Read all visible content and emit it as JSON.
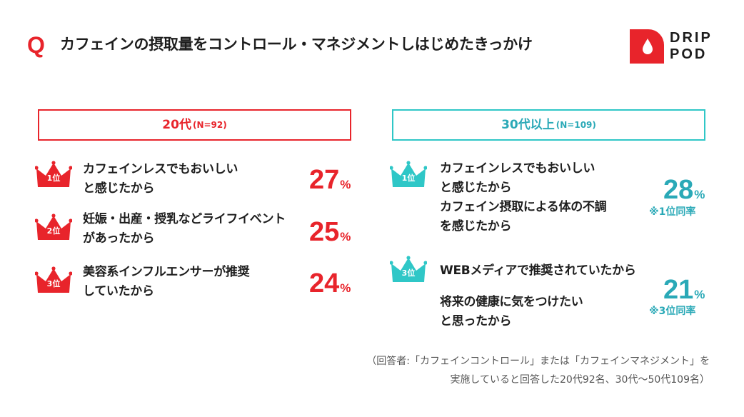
{
  "header": {
    "q_mark": "Q",
    "title": "カフェインの摂取量をコントロール・マネジメントしはじめたきっかけ"
  },
  "logo": {
    "line1": "DRIP",
    "line2": "POD",
    "color": "#e8242b"
  },
  "colors": {
    "red": "#e8242b",
    "teal": "#2fc7c7",
    "teal_text": "#2aa9b7"
  },
  "chart_data": [
    {
      "type": "table",
      "group": "20代",
      "n": "(N=92)",
      "rows": [
        {
          "rank": "1位",
          "reason": [
            "カフェインレスでもおいしい",
            "と感じたから"
          ],
          "value": 27,
          "unit": "%"
        },
        {
          "rank": "2位",
          "reason": [
            "妊娠・出産・授乳などライフイベント",
            "があったから"
          ],
          "value": 25,
          "unit": "%"
        },
        {
          "rank": "3位",
          "reason": [
            "美容系インフルエンサーが推奨",
            "していたから"
          ],
          "value": 24,
          "unit": "%"
        }
      ]
    },
    {
      "type": "table",
      "group": "30代以上",
      "n": "(N=109)",
      "rows": [
        {
          "rank": "1位",
          "reason": [
            "カフェインレスでもおいしい",
            "と感じたから"
          ],
          "value": 28,
          "unit": "%",
          "note": "※1位同率"
        },
        {
          "rank": "1位",
          "reason": [
            "カフェイン摂取による体の不調",
            "を感じたから"
          ],
          "value": 28,
          "unit": "%",
          "note": "※1位同率"
        },
        {
          "rank": "3位",
          "reason": [
            "WEBメディアで推奨されていたから"
          ],
          "value": 21,
          "unit": "%",
          "note": "※3位同率"
        },
        {
          "rank": "3位",
          "reason": [
            "将来の健康に気をつけたい",
            "と思ったから"
          ],
          "value": 21,
          "unit": "%",
          "note": "※3位同率"
        }
      ]
    }
  ],
  "footnote": {
    "line1": "（回答者:「カフェインコントロール」または「カフェインマネジメント」を",
    "line2": "実施していると回答した20代92名、30代〜50代109名）"
  }
}
